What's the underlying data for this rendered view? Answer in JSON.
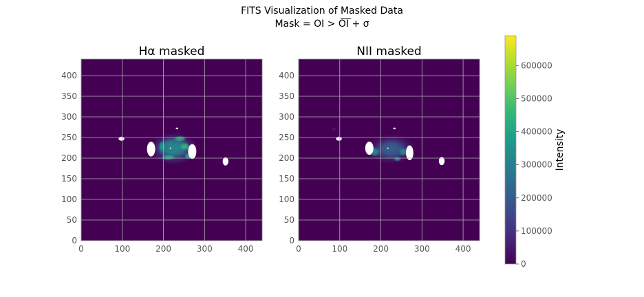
{
  "figure": {
    "suptitle_line1": "FITS Visualization of Masked Data",
    "suptitle_line2": "Mask = OI >  OI + σ"
  },
  "chart_data": [
    {
      "type": "heatmap",
      "title": "Hα masked",
      "xlim": [
        0,
        440
      ],
      "ylim": [
        0,
        440
      ],
      "xticks": [
        0,
        100,
        200,
        300,
        400
      ],
      "yticks": [
        0,
        50,
        100,
        150,
        200,
        250,
        300,
        350,
        400
      ],
      "grid": true,
      "colormap": "viridis",
      "value_range": [
        0,
        690000
      ],
      "emission_blobs": [
        {
          "x": 225,
          "y": 223,
          "rx": 58,
          "ry": 38,
          "value": 160000
        },
        {
          "x": 225,
          "y": 225,
          "rx": 42,
          "ry": 26,
          "value": 330000
        },
        {
          "x": 252,
          "y": 228,
          "rx": 13,
          "ry": 9,
          "value": 450000
        },
        {
          "x": 212,
          "y": 202,
          "rx": 18,
          "ry": 7,
          "value": 420000
        },
        {
          "x": 240,
          "y": 247,
          "rx": 16,
          "ry": 7,
          "value": 430000
        },
        {
          "x": 197,
          "y": 228,
          "rx": 8,
          "ry": 14,
          "value": 380000
        },
        {
          "x": 260,
          "y": 205,
          "rx": 10,
          "ry": 8,
          "value": 400000
        }
      ],
      "masked_regions": [
        {
          "x": 98,
          "y": 247,
          "rx": 7,
          "ry": 5
        },
        {
          "x": 170,
          "y": 222,
          "rx": 10,
          "ry": 18
        },
        {
          "x": 270,
          "y": 216,
          "rx": 10,
          "ry": 18
        },
        {
          "x": 351,
          "y": 192,
          "rx": 7,
          "ry": 10
        },
        {
          "x": 233,
          "y": 272,
          "rx": 3,
          "ry": 2
        },
        {
          "x": 217,
          "y": 224,
          "rx": 1,
          "ry": 1
        }
      ]
    },
    {
      "type": "heatmap",
      "title": "NII masked",
      "xlim": [
        0,
        440
      ],
      "ylim": [
        0,
        440
      ],
      "xticks": [
        0,
        100,
        200,
        300,
        400
      ],
      "yticks": [
        0,
        50,
        100,
        150,
        200,
        250,
        300,
        350,
        400
      ],
      "grid": true,
      "colormap": "viridis",
      "value_range": [
        0,
        690000
      ],
      "emission_blobs": [
        {
          "x": 225,
          "y": 222,
          "rx": 58,
          "ry": 36,
          "value": 100000
        },
        {
          "x": 225,
          "y": 222,
          "rx": 40,
          "ry": 24,
          "value": 210000
        },
        {
          "x": 185,
          "y": 215,
          "rx": 14,
          "ry": 12,
          "value": 340000
        },
        {
          "x": 255,
          "y": 215,
          "rx": 12,
          "ry": 10,
          "value": 330000
        },
        {
          "x": 240,
          "y": 198,
          "rx": 10,
          "ry": 6,
          "value": 360000
        },
        {
          "x": 86,
          "y": 270,
          "rx": 6,
          "ry": 4,
          "value": 60000
        }
      ],
      "masked_regions": [
        {
          "x": 98,
          "y": 247,
          "rx": 7,
          "ry": 5
        },
        {
          "x": 172,
          "y": 224,
          "rx": 10,
          "ry": 16
        },
        {
          "x": 270,
          "y": 213,
          "rx": 9,
          "ry": 18
        },
        {
          "x": 348,
          "y": 193,
          "rx": 7,
          "ry": 10
        },
        {
          "x": 233,
          "y": 272,
          "rx": 3,
          "ry": 2
        },
        {
          "x": 217,
          "y": 224,
          "rx": 1,
          "ry": 1
        }
      ]
    }
  ],
  "colorbar": {
    "label": "Intensity",
    "min": 0,
    "max": 690000,
    "ticks": [
      0,
      100000,
      200000,
      300000,
      400000,
      500000,
      600000
    ],
    "colormap_stops": [
      "#440154",
      "#482878",
      "#3e4989",
      "#31688e",
      "#26828e",
      "#1f9e89",
      "#35b779",
      "#6ece58",
      "#b5de2b",
      "#fde725"
    ]
  }
}
